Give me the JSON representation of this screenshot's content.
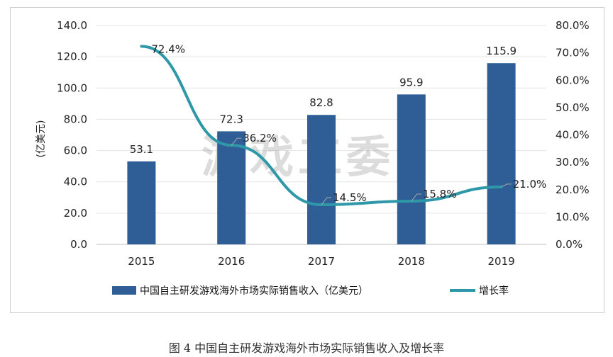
{
  "caption": "图 4   中国自主研发游戏海外市场实际销售收入及增长率",
  "watermark": "游戏工委",
  "chart_data": {
    "type": "bar",
    "categories": [
      "2015",
      "2016",
      "2017",
      "2018",
      "2019"
    ],
    "series": [
      {
        "name": "中国自主研发游戏海外市场实际销售收入（亿美元）",
        "type": "bar",
        "axis": "left",
        "values": [
          53.1,
          72.3,
          82.8,
          95.9,
          115.9
        ],
        "labels": [
          "53.1",
          "72.3",
          "82.8",
          "95.9",
          "115.9"
        ],
        "color": "#2e5e95"
      },
      {
        "name": "增长率",
        "type": "line",
        "axis": "right",
        "values": [
          72.4,
          36.2,
          14.5,
          15.8,
          21.0
        ],
        "labels": [
          "72.4%",
          "36.2%",
          "14.5%",
          "15.8%",
          "21.0%"
        ],
        "color": "#2f98a8"
      }
    ],
    "ylabel": "(亿美元)",
    "ylim": [
      0,
      140
    ],
    "yticks": [
      "0.0",
      "20.0",
      "40.0",
      "60.0",
      "80.0",
      "100.0",
      "120.0",
      "140.0"
    ],
    "y2lim": [
      0,
      80
    ],
    "y2ticks": [
      "0.0%",
      "10.0%",
      "20.0%",
      "30.0%",
      "40.0%",
      "50.0%",
      "60.0%",
      "70.0%",
      "80.0%"
    ],
    "gridlines": true,
    "legend_position": "bottom"
  }
}
